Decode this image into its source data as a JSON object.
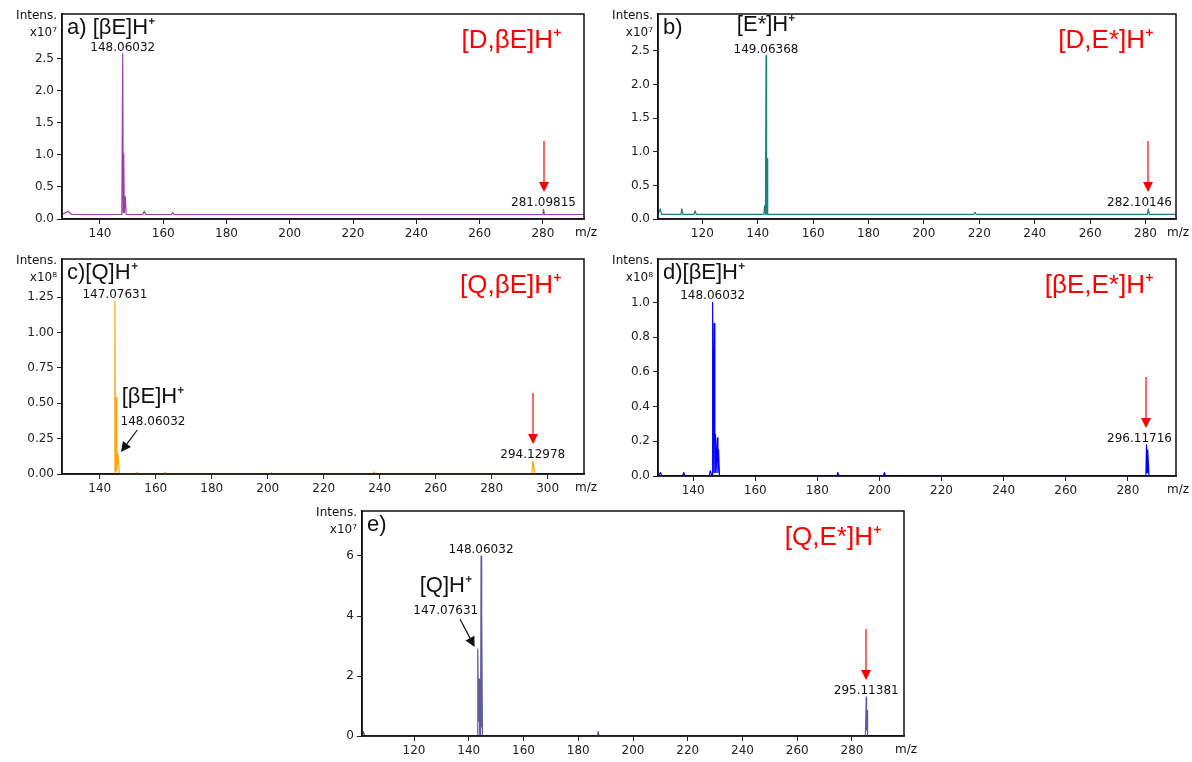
{
  "chart_data": [
    {
      "type": "line",
      "title": "a) [βE]H⁺",
      "subtitle": "[D,βE]H⁺",
      "xlabel": "m/z",
      "ylabel": "Intens. x10⁷",
      "series": [
        {
          "color": "#9b3fa8",
          "x": [
            128,
            130,
            131,
            146.9,
            147.2,
            147.35,
            147.5,
            147.7,
            148.0,
            148.3,
            153.5,
            154,
            154.5,
            162.5,
            163,
            163.5,
            280,
            280.2,
            280.5,
            293
          ],
          "values": [
            0.07,
            0.12,
            0.07,
            0.07,
            2.58,
            0.1,
            1.02,
            0.1,
            0.35,
            0.07,
            0.07,
            0.12,
            0.07,
            0.07,
            0.1,
            0.07,
            0.07,
            0.15,
            0.07,
            0.07
          ]
        }
      ],
      "xlim": [
        128,
        293
      ],
      "xticks": [
        140,
        160,
        180,
        200,
        220,
        240,
        260,
        280
      ],
      "ylim": [
        0,
        3.2
      ],
      "yticks": [
        {
          "value": 0,
          "label": "0.0"
        },
        0.5,
        {
          "value": 1,
          "label": "1.0"
        },
        1.5,
        {
          "value": 2,
          "label": "2.0"
        },
        2.5
      ],
      "annotations": [
        {
          "text": "148.06032",
          "x": 147.2,
          "y": 2.58
        },
        {
          "text": "281.09815",
          "x": 280.2,
          "y": 0.15
        }
      ],
      "grid": false,
      "legend": false
    },
    {
      "type": "line",
      "title": "b)",
      "subtitle": "[D,E*]H⁺",
      "xlabel": "m/z",
      "ylabel": "Intens. x10⁷",
      "series": [
        {
          "color": "#1a8080",
          "x": [
            104,
            104.8,
            105.3,
            112.3,
            112.6,
            113,
            117,
            117.4,
            117.8,
            142.2,
            142.5,
            142.8,
            143,
            143.2,
            143.4,
            143.6,
            218,
            218.4,
            218.8,
            280.7,
            281,
            281.4,
            291
          ],
          "values": [
            0.07,
            0.15,
            0.07,
            0.07,
            0.15,
            0.07,
            0.07,
            0.12,
            0.07,
            0.07,
            0.2,
            0.07,
            2.43,
            0.07,
            0.9,
            0.07,
            0.07,
            0.1,
            0.07,
            0.07,
            0.15,
            0.07,
            0.07
          ]
        }
      ],
      "xlim": [
        104,
        291
      ],
      "xticks": [
        120,
        140,
        160,
        180,
        200,
        220,
        240,
        260,
        280
      ],
      "ylim": [
        0,
        3.05
      ],
      "yticks": [
        {
          "value": 0,
          "label": "0.0"
        },
        0.5,
        {
          "value": 1,
          "label": "1.0"
        },
        1.5,
        {
          "value": 2,
          "label": "2.0"
        },
        2.5
      ],
      "annotations": [
        {
          "text": "[E*]H⁺",
          "x": 143,
          "y": 2.43
        },
        {
          "text": "149.06368",
          "x": 143,
          "y": 2.43
        },
        {
          "text": "282.10146",
          "x": 281,
          "y": 0.15
        }
      ],
      "grid": false,
      "legend": false
    },
    {
      "type": "line",
      "title": "c)[Q]H⁺",
      "subtitle": "[Q,βE]H⁺",
      "xlabel": "m/z",
      "ylabel": "Intens. x10⁸",
      "series": [
        {
          "color": "#ffa50a",
          "x": [
            145.2,
            145.4,
            145.6,
            145.9,
            146.1,
            146.5,
            147,
            153,
            153.3,
            153.6,
            163,
            163.3,
            163.6,
            201,
            201.3,
            201.6,
            237.6,
            238,
            238.4,
            294.4,
            294.7,
            295.5
          ],
          "values": [
            0,
            1.22,
            0.02,
            0.54,
            0.02,
            0.14,
            0,
            0,
            0.01,
            0,
            0,
            0.01,
            0,
            0,
            0.01,
            0,
            0,
            0.015,
            0,
            0,
            0.09,
            0
          ]
        }
      ],
      "xlim": [
        126.5,
        313
      ],
      "xticks": [
        140,
        160,
        180,
        200,
        220,
        240,
        260,
        280,
        300
      ],
      "ylim": [
        0,
        1.52
      ],
      "yticks": [
        {
          "value": 0,
          "label": "0.00"
        },
        0.25,
        {
          "value": 0.5,
          "label": "0.50"
        },
        0.75,
        {
          "value": 1,
          "label": "1.00"
        },
        1.25
      ],
      "annotations": [
        {
          "text": "147.07631",
          "x": 145.4,
          "y": 1.22
        },
        {
          "text": "[βE]H⁺",
          "x": 146.5,
          "y": 0.14
        },
        {
          "text": "148.06032",
          "x": 146.5,
          "y": 0.14
        },
        {
          "text": "294.12978",
          "x": 294.7,
          "y": 0.09
        }
      ],
      "grid": false,
      "legend": false
    },
    {
      "type": "line",
      "title": "d)[βE]H⁺",
      "subtitle": "[βE,E*]H⁺",
      "xlabel": "m/z",
      "ylabel": "Intens. x10⁸",
      "series": [
        {
          "color": "#0000ff",
          "x": [
            128.7,
            129.5,
            130,
            136.6,
            137,
            137.4,
            145.2,
            145.5,
            146.1,
            146.3,
            146.5,
            146.8,
            147,
            147.2,
            147.4,
            147.8,
            148,
            148.2,
            148.5,
            186.3,
            186.6,
            187,
            201.3,
            201.6,
            202,
            285.8,
            286,
            286.2,
            286.4,
            286.8
          ],
          "values": [
            0,
            0.02,
            0,
            0,
            0.02,
            0,
            0,
            0.03,
            0,
            1.0,
            0.02,
            0.88,
            0.02,
            0.24,
            0.02,
            0.22,
            0.02,
            0.15,
            0,
            0,
            0.02,
            0,
            0,
            0.02,
            0,
            0,
            0.18,
            0.02,
            0.15,
            0
          ]
        }
      ],
      "xlim": [
        128.7,
        295.5
      ],
      "xticks": [
        140,
        160,
        180,
        200,
        220,
        240,
        260,
        280
      ],
      "ylim": [
        0,
        1.25
      ],
      "yticks": [
        {
          "value": 0,
          "label": "0.0"
        },
        0.2,
        0.4,
        0.6,
        0.8,
        {
          "value": 1,
          "label": "1.0"
        }
      ],
      "annotations": [
        {
          "text": "148.06032",
          "x": 146.3,
          "y": 1.0
        },
        {
          "text": "296.11716",
          "x": 286,
          "y": 0.18
        }
      ],
      "grid": false,
      "legend": false
    },
    {
      "type": "line",
      "title": "e)",
      "subtitle": "[Q,E*]H⁺",
      "xlabel": "m/z",
      "ylabel": "Intens. x10⁷",
      "series": [
        {
          "color": "#5c5c9e",
          "x": [
            101,
            101.5,
            102,
            143.1,
            143.3,
            143.6,
            143.8,
            144,
            144.3,
            144.5,
            144.65,
            144.8,
            145,
            187,
            187.3,
            187.6,
            284.9,
            285.2,
            285.35,
            285.5,
            285.7
          ],
          "values": [
            0,
            0.15,
            0,
            0,
            2.9,
            0.5,
            1.9,
            0,
            0,
            6.0,
            0.3,
            4.25,
            0,
            0,
            0.15,
            0,
            0,
            1.3,
            0.2,
            0.85,
            0
          ]
        }
      ],
      "xlim": [
        101,
        299
      ],
      "xticks": [
        120,
        140,
        160,
        180,
        200,
        220,
        240,
        260,
        280
      ],
      "ylim": [
        0,
        7.5
      ],
      "yticks": [
        0,
        2,
        4,
        6
      ],
      "annotations": [
        {
          "text": "148.06032",
          "x": 144.5,
          "y": 6.0
        },
        {
          "text": "[Q]H⁺",
          "x": 143.3,
          "y": 2.9
        },
        {
          "text": "147.07631",
          "x": 143.3,
          "y": 2.9
        },
        {
          "text": "295.11381",
          "x": 285.2,
          "y": 1.3
        }
      ],
      "grid": false,
      "legend": false
    }
  ]
}
